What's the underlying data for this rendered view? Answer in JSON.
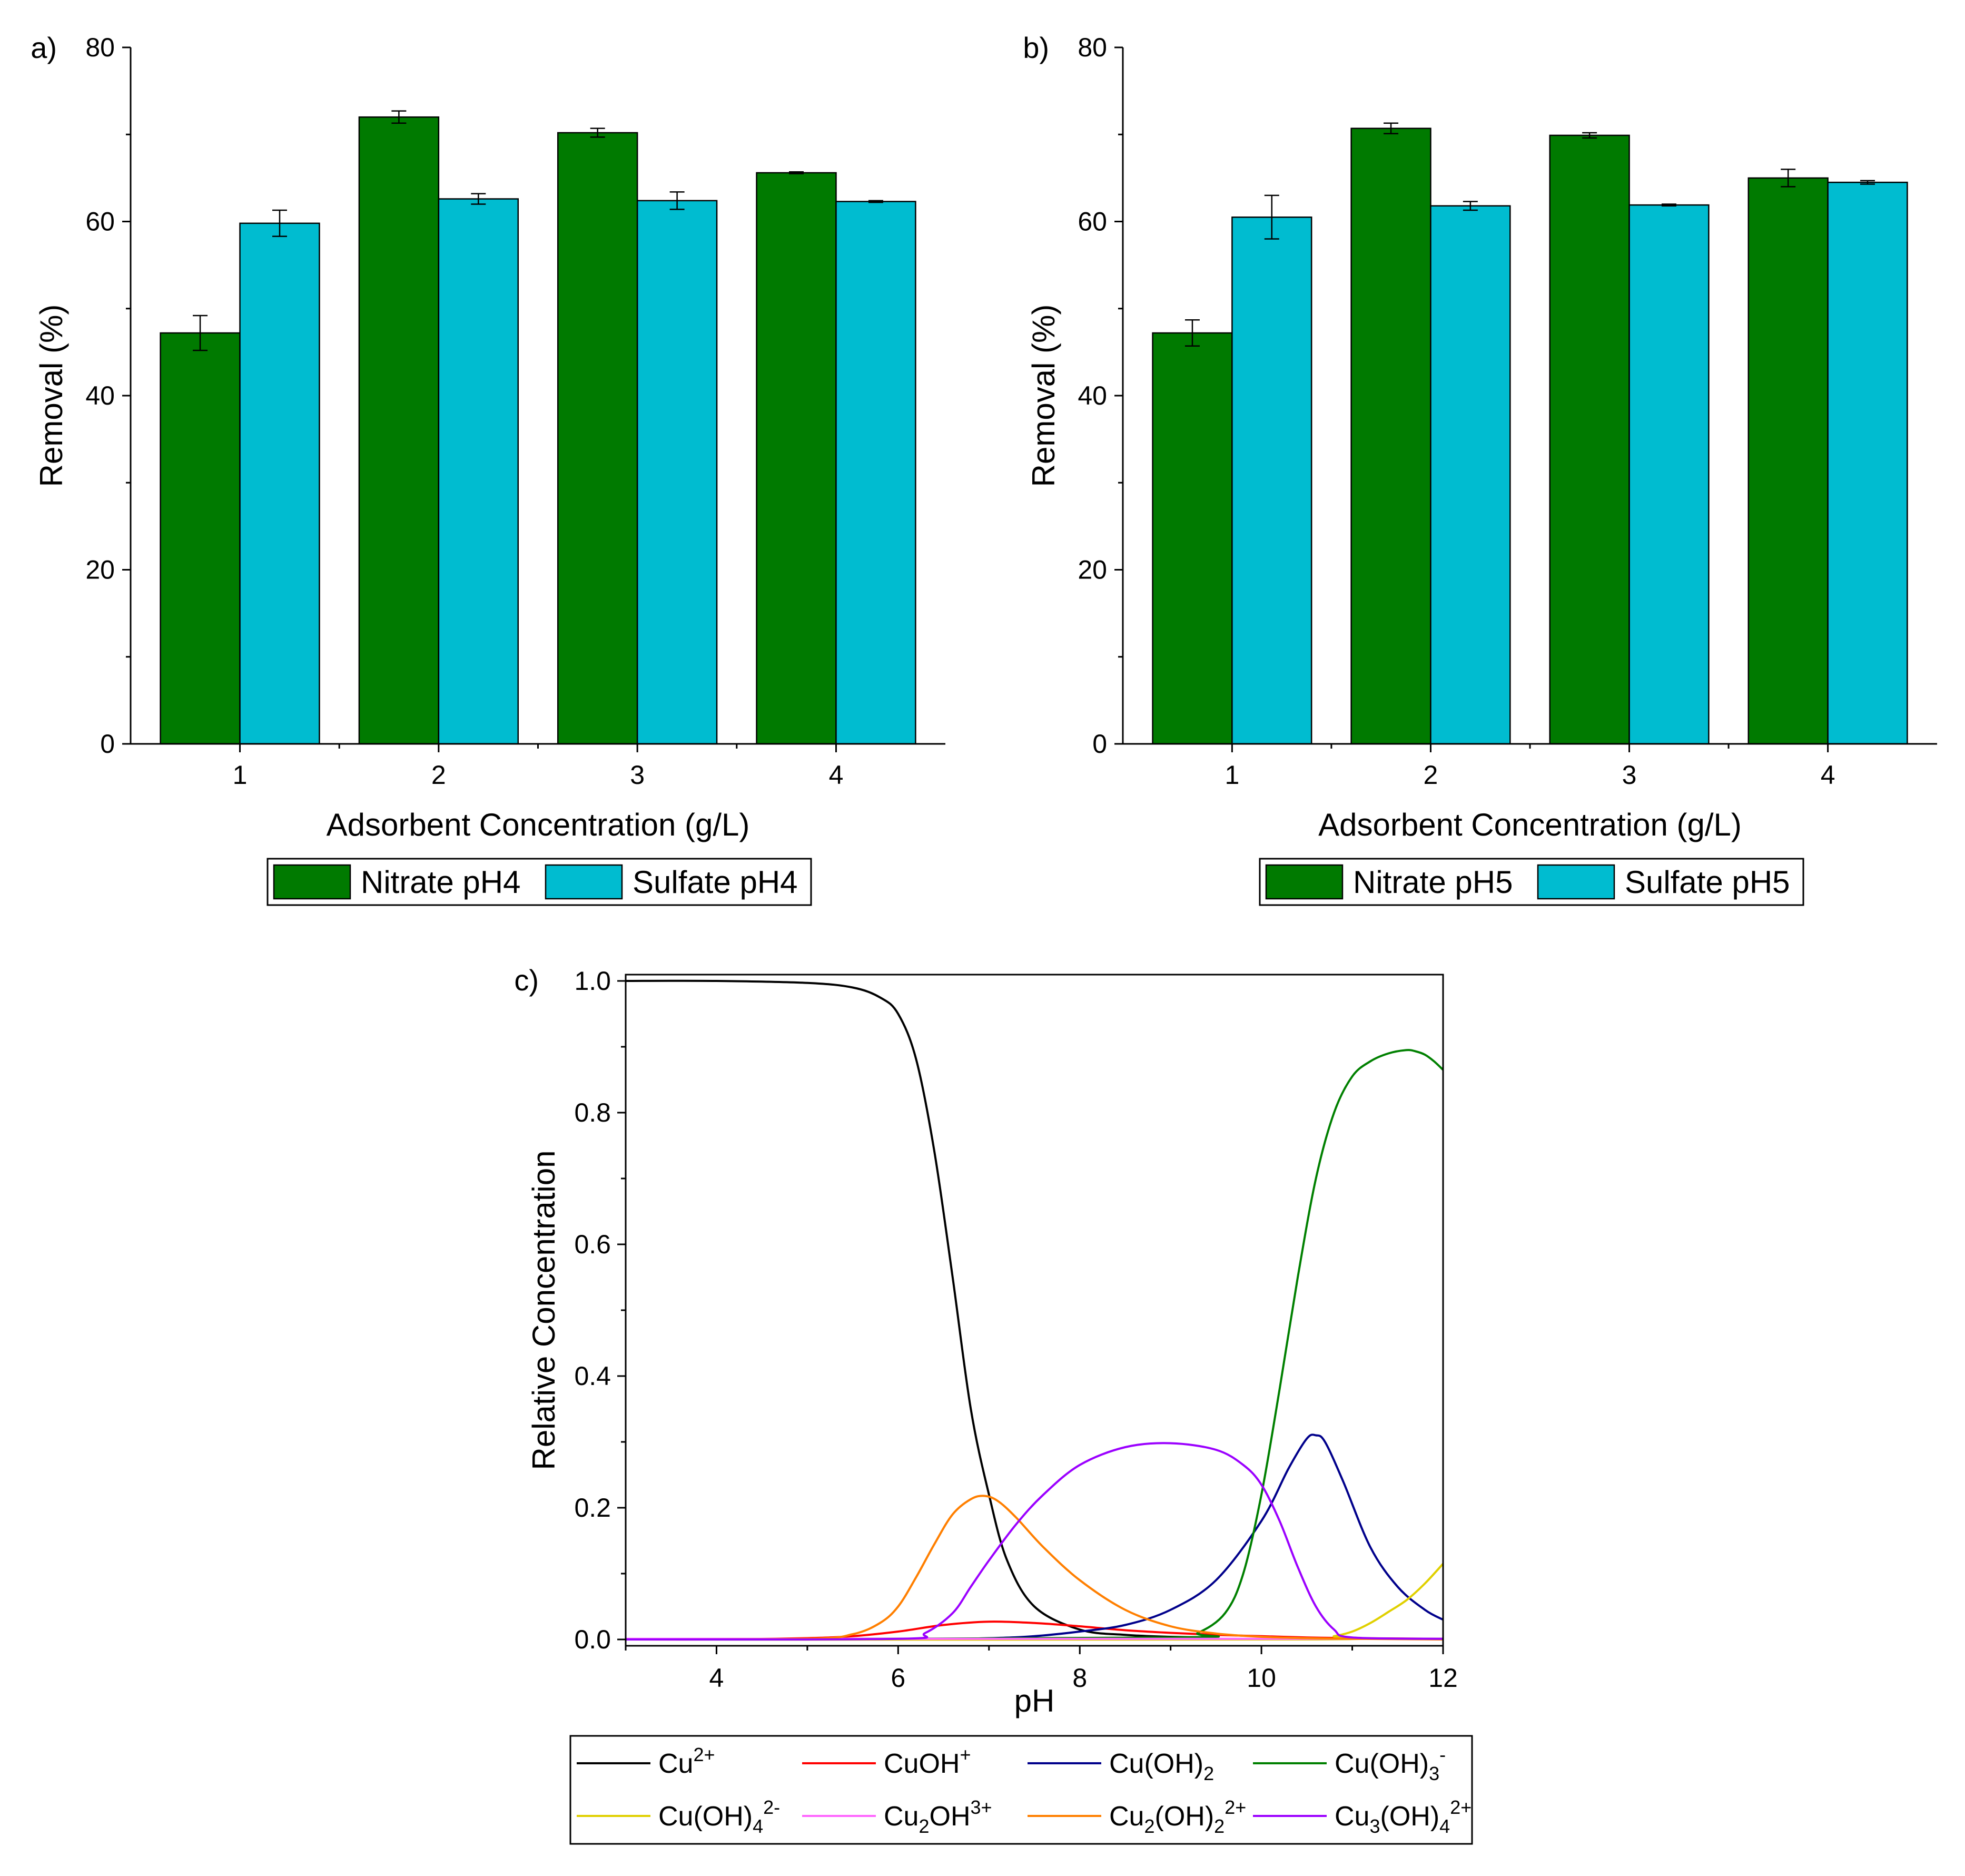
{
  "chart_data": [
    {
      "id": "a",
      "type": "bar",
      "panel_label": "a)",
      "xlabel": "Adsorbent Concentration (g/L)",
      "ylabel": "Removal (%)",
      "ylim": [
        0,
        80
      ],
      "yticks": [
        0,
        20,
        40,
        60,
        80
      ],
      "categories": [
        "1",
        "2",
        "3",
        "4"
      ],
      "series": [
        {
          "name": "Nitrate pH4",
          "color": "#007a00",
          "values": [
            47.2,
            72.0,
            70.2,
            65.6
          ],
          "errors": [
            2.0,
            0.7,
            0.5,
            0.1
          ]
        },
        {
          "name": "Sulfate pH4",
          "color": "#00bcd0",
          "values": [
            59.8,
            62.6,
            62.4,
            62.3
          ],
          "errors": [
            1.5,
            0.6,
            1.0,
            0.1
          ]
        }
      ],
      "legend": "bottom"
    },
    {
      "id": "b",
      "type": "bar",
      "panel_label": "b)",
      "xlabel": "Adsorbent Concentration (g/L)",
      "ylabel": "Removal (%)",
      "ylim": [
        0,
        80
      ],
      "yticks": [
        0,
        20,
        40,
        60,
        80
      ],
      "categories": [
        "1",
        "2",
        "3",
        "4"
      ],
      "series": [
        {
          "name": "Nitrate pH5",
          "color": "#007a00",
          "values": [
            47.2,
            70.7,
            69.9,
            65.0
          ],
          "errors": [
            1.5,
            0.6,
            0.3,
            1.0
          ]
        },
        {
          "name": "Sulfate pH5",
          "color": "#00bcd0",
          "values": [
            60.5,
            61.8,
            61.9,
            64.5
          ],
          "errors": [
            2.5,
            0.5,
            0.1,
            0.2
          ]
        }
      ],
      "legend": "bottom"
    },
    {
      "id": "c",
      "type": "line",
      "panel_label": "c)",
      "xlabel": "pH",
      "ylabel": "Relative Concentration",
      "xlim": [
        3,
        12
      ],
      "ylim": [
        0,
        1.0
      ],
      "xticks": [
        4,
        6,
        8,
        10,
        12
      ],
      "yticks": [
        0.0,
        0.2,
        0.4,
        0.6,
        0.8,
        1.0
      ],
      "ytick_labels": [
        "0.0",
        "0.2",
        "0.4",
        "0.6",
        "0.8",
        "1.0"
      ],
      "series": [
        {
          "name": "Cu",
          "sup": "2+",
          "sub": "",
          "color": "#000000",
          "x": [
            3,
            4,
            5,
            5.5,
            5.8,
            6.0,
            6.2,
            6.4,
            6.6,
            6.8,
            7.0,
            7.2,
            7.5,
            8.0,
            8.5,
            9.0,
            9.5
          ],
          "y": [
            1.0,
            1.0,
            0.997,
            0.99,
            0.975,
            0.95,
            0.88,
            0.74,
            0.55,
            0.35,
            0.22,
            0.12,
            0.05,
            0.015,
            0.007,
            0.004,
            0.003
          ]
        },
        {
          "name": "CuOH",
          "sup": "+",
          "sub": "",
          "color": "#ff0000",
          "x": [
            3,
            4,
            5,
            5.5,
            6.0,
            6.5,
            7.0,
            7.5,
            8.0,
            8.5,
            9.0,
            9.5,
            10.0,
            10.5,
            11.0,
            12.0
          ],
          "y": [
            0.0,
            0.0,
            0.002,
            0.005,
            0.012,
            0.022,
            0.027,
            0.025,
            0.02,
            0.014,
            0.01,
            0.007,
            0.005,
            0.003,
            0.002,
            0.001
          ]
        },
        {
          "name": "Cu(OH)",
          "sup": "",
          "sub": "2",
          "color": "#00008b",
          "x": [
            3,
            6.0,
            7.0,
            7.5,
            8.0,
            8.5,
            9.0,
            9.5,
            10.0,
            10.3,
            10.5,
            10.6,
            10.7,
            10.9,
            11.2,
            11.5,
            11.8,
            12.0
          ],
          "y": [
            0.0,
            0.0,
            0.002,
            0.005,
            0.012,
            0.022,
            0.045,
            0.09,
            0.18,
            0.26,
            0.305,
            0.31,
            0.3,
            0.24,
            0.14,
            0.08,
            0.045,
            0.03
          ]
        },
        {
          "name": "Cu(OH)",
          "sup": "-",
          "sub": "3",
          "color": "#008000",
          "x": [
            3,
            9.0,
            9.3,
            9.6,
            9.8,
            10.0,
            10.2,
            10.4,
            10.6,
            10.8,
            11.0,
            11.2,
            11.4,
            11.6,
            11.7,
            11.8,
            11.9,
            12.0
          ],
          "y": [
            0.0,
            0.003,
            0.01,
            0.04,
            0.1,
            0.22,
            0.38,
            0.55,
            0.7,
            0.8,
            0.855,
            0.878,
            0.89,
            0.895,
            0.893,
            0.888,
            0.878,
            0.865
          ]
        },
        {
          "name": "Cu(OH)",
          "sup": "2-",
          "sub": "4",
          "color": "#e0d000",
          "x": [
            3,
            10.5,
            10.8,
            11.0,
            11.2,
            11.4,
            11.6,
            11.8,
            12.0
          ],
          "y": [
            0.0,
            0.0,
            0.005,
            0.012,
            0.025,
            0.042,
            0.06,
            0.085,
            0.115
          ]
        },
        {
          "name": "Cu",
          "sup": "3+",
          "sub": "2",
          "suffix": "OH",
          "color": "#ff66ff",
          "x": [
            3,
            12
          ],
          "y": [
            0.001,
            0.001
          ]
        },
        {
          "name": "Cu",
          "sup": "2+",
          "sub": "2",
          "suffix": "(OH)",
          "sub2": "2",
          "color": "#ff7f00",
          "x": [
            3,
            5.0,
            5.5,
            5.8,
            6.0,
            6.2,
            6.4,
            6.6,
            6.8,
            6.95,
            7.1,
            7.3,
            7.6,
            8.0,
            8.5,
            9.0,
            9.5,
            10.0,
            10.5,
            11.0,
            12.0
          ],
          "y": [
            0.0,
            0.001,
            0.008,
            0.025,
            0.05,
            0.095,
            0.145,
            0.19,
            0.213,
            0.218,
            0.21,
            0.185,
            0.14,
            0.09,
            0.045,
            0.02,
            0.009,
            0.004,
            0.002,
            0.001,
            0.0
          ]
        },
        {
          "name": "Cu",
          "sup": "2+",
          "sub": "3",
          "suffix": "(OH)",
          "sub2": "4",
          "color": "#9b00ff",
          "x": [
            3,
            6.0,
            6.3,
            6.6,
            6.8,
            7.0,
            7.3,
            7.6,
            8.0,
            8.5,
            9.0,
            9.5,
            9.8,
            10.0,
            10.2,
            10.4,
            10.6,
            10.8,
            11.0,
            12.0
          ],
          "y": [
            0.0,
            0.001,
            0.01,
            0.04,
            0.08,
            0.12,
            0.175,
            0.22,
            0.265,
            0.292,
            0.298,
            0.288,
            0.265,
            0.235,
            0.18,
            0.11,
            0.05,
            0.015,
            0.003,
            0.001
          ]
        }
      ],
      "legend": "bottom"
    }
  ]
}
